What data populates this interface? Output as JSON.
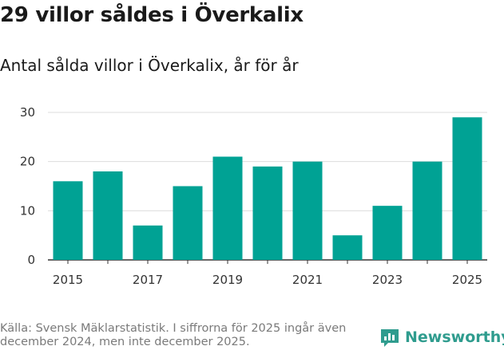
{
  "title": "29 villor såldes i Överkalix",
  "subtitle": "Antal sålda villor i Överkalix, år för år",
  "source": "Källa: Svensk Mäklarstatistik. I siffrorna för 2025 ingår även december 2024, men inte december 2025.",
  "brand": {
    "name": "Newsworthy",
    "icon": "bar-chart-logo-icon"
  },
  "colors": {
    "bar": "#00a294",
    "grid": "#dddddd",
    "axis": "#333333",
    "brand": "#2f9c8e"
  },
  "chart_data": {
    "type": "bar",
    "title": "29 villor såldes i Överkalix",
    "subtitle": "Antal sålda villor i Överkalix, år för år",
    "xlabel": "",
    "ylabel": "",
    "categories": [
      "2015",
      "2016",
      "2017",
      "2018",
      "2019",
      "2020",
      "2021",
      "2022",
      "2023",
      "2024",
      "2025"
    ],
    "values": [
      16,
      18,
      7,
      15,
      21,
      19,
      20,
      5,
      11,
      20,
      29
    ],
    "x_tick_labels": [
      "2015",
      "2017",
      "2019",
      "2021",
      "2023",
      "2025"
    ],
    "y_ticks": [
      0,
      10,
      20,
      30
    ],
    "ylim": [
      0,
      30
    ],
    "grid": true
  }
}
